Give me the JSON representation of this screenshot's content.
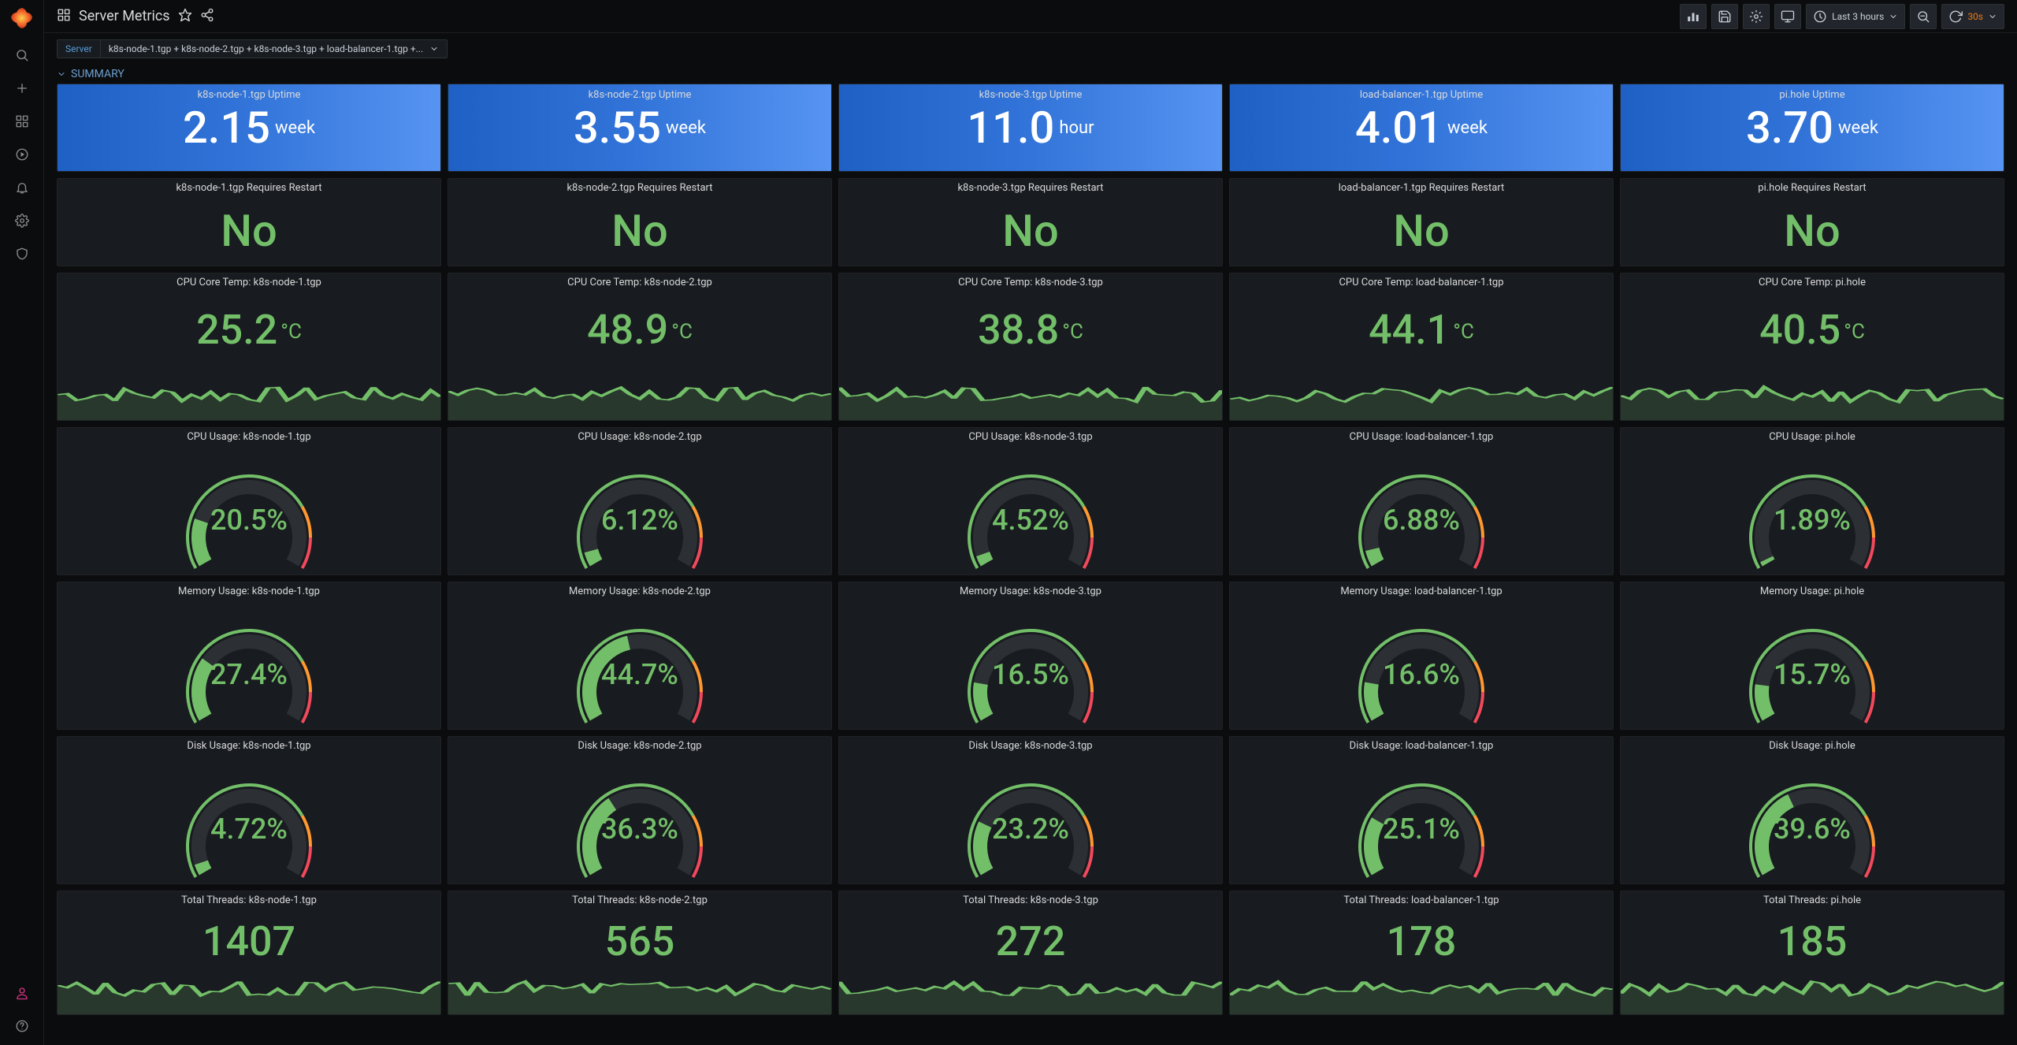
{
  "page": {
    "title": "Server Metrics"
  },
  "topbar": {
    "timeRange": "Last 3 hours",
    "refreshInterval": "30s"
  },
  "variable": {
    "label": "Server",
    "value": "k8s-node-1.tgp + k8s-node-2.tgp + k8s-node-3.tgp + load-balancer-1.tgp +..."
  },
  "section": {
    "title": "SUMMARY"
  },
  "servers": [
    "k8s-node-1.tgp",
    "k8s-node-2.tgp",
    "k8s-node-3.tgp",
    "load-balancer-1.tgp",
    "pi.hole"
  ],
  "uptime": [
    {
      "value": "2.15",
      "unit": "week"
    },
    {
      "value": "3.55",
      "unit": "week"
    },
    {
      "value": "11.0",
      "unit": "hour"
    },
    {
      "value": "4.01",
      "unit": "week"
    },
    {
      "value": "3.70",
      "unit": "week"
    }
  ],
  "restart": [
    "No",
    "No",
    "No",
    "No",
    "No"
  ],
  "temp": [
    {
      "value": "25.2",
      "unit": "°C"
    },
    {
      "value": "48.9",
      "unit": "°C"
    },
    {
      "value": "38.8",
      "unit": "°C"
    },
    {
      "value": "44.1",
      "unit": "°C"
    },
    {
      "value": "40.5",
      "unit": "°C"
    }
  ],
  "cpu": [
    "20.5%",
    "6.12%",
    "4.52%",
    "6.88%",
    "1.89%"
  ],
  "cpuVal": [
    20.5,
    6.12,
    4.52,
    6.88,
    1.89
  ],
  "mem": [
    "27.4%",
    "44.7%",
    "16.5%",
    "16.6%",
    "15.7%"
  ],
  "memVal": [
    27.4,
    44.7,
    16.5,
    16.6,
    15.7
  ],
  "disk": [
    "4.72%",
    "36.3%",
    "23.2%",
    "25.1%",
    "39.6%"
  ],
  "diskVal": [
    4.72,
    36.3,
    23.2,
    25.1,
    39.6
  ],
  "threads": [
    "1407",
    "565",
    "272",
    "178",
    "185"
  ],
  "colors": {
    "green": "#73bf69",
    "orange": "#ff9830",
    "red": "#f2495c",
    "track": "#2c2f33",
    "uptimeGrad": [
      "#1f60c4",
      "#5794f2"
    ]
  },
  "gaugeConfig": {
    "startAngle": 150,
    "endAngle": 390,
    "warnPct": 75,
    "dangerPct": 87.5
  },
  "rowTitles": {
    "uptime": "{S} Uptime",
    "restart": "{S} Requires Restart",
    "temp": "CPU Core Temp: {S}",
    "cpu": "CPU Usage: {S}",
    "mem": "Memory Usage: {S}",
    "disk": "Disk Usage: {S}",
    "threads": "Total Threads: {S}"
  }
}
